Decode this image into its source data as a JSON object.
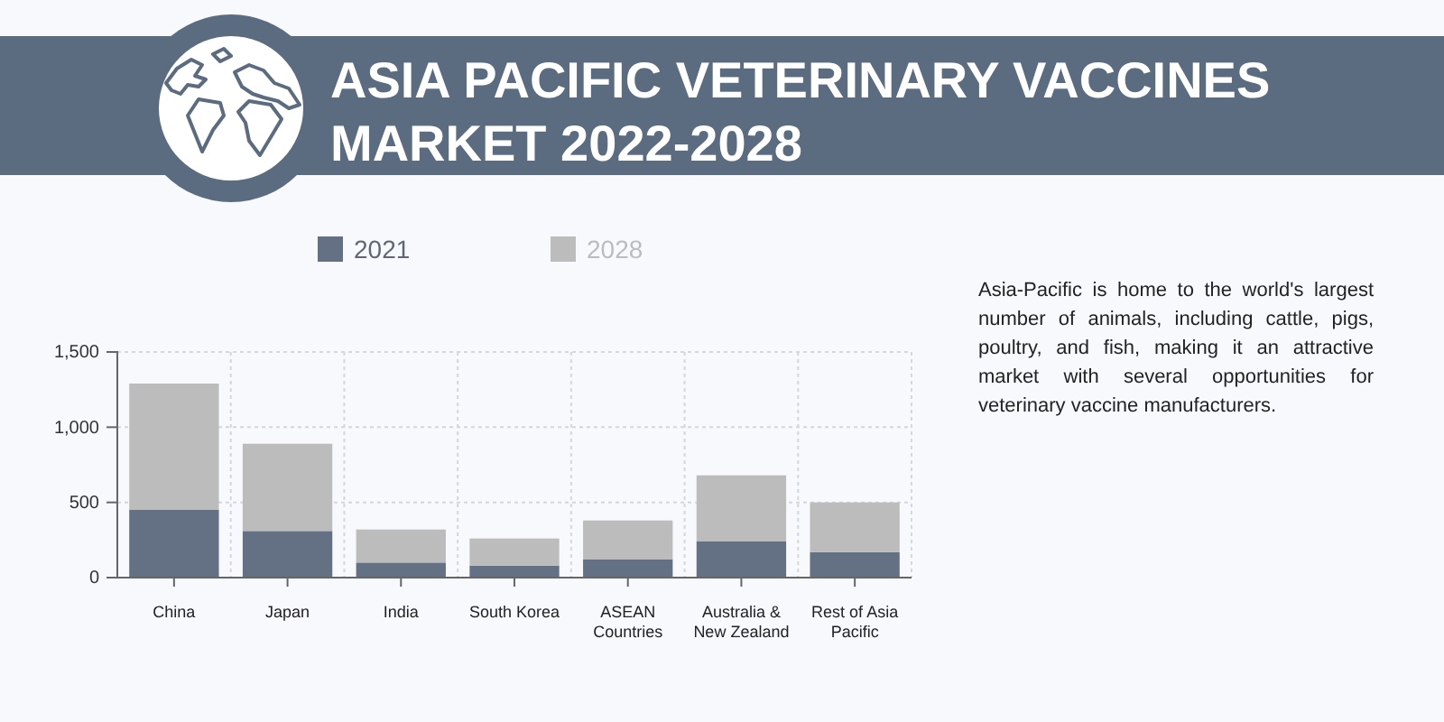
{
  "chart_data": {
    "type": "bar",
    "title": "ASIA PACIFIC VETERINARY VACCINES MARKET 2022-2028",
    "categories": [
      "China",
      "Japan",
      "India",
      "South Korea",
      "ASEAN Countries",
      "Australia & New Zealand",
      "Rest of Asia Pacific"
    ],
    "series": [
      {
        "name": "2021",
        "color": "#647185",
        "values": [
          450,
          310,
          100,
          80,
          120,
          240,
          170
        ]
      },
      {
        "name": "2028",
        "color": "#bcbcbc",
        "values": [
          840,
          580,
          220,
          180,
          260,
          440,
          330
        ]
      }
    ],
    "stacked": true,
    "ylim": [
      0,
      1500
    ],
    "yticks": [
      0,
      500,
      {
        "value": 1000,
        "label": "1,000"
      },
      {
        "value": 1500,
        "label": "1,500"
      }
    ],
    "grid": true,
    "legend": "top",
    "annotations": [
      "Asia-Pacific is home to the world's largest number of animals, including cattle, pigs, poultry, and fish, making it an attractive market with several opportunities for veterinary vaccine manufacturers."
    ]
  }
}
